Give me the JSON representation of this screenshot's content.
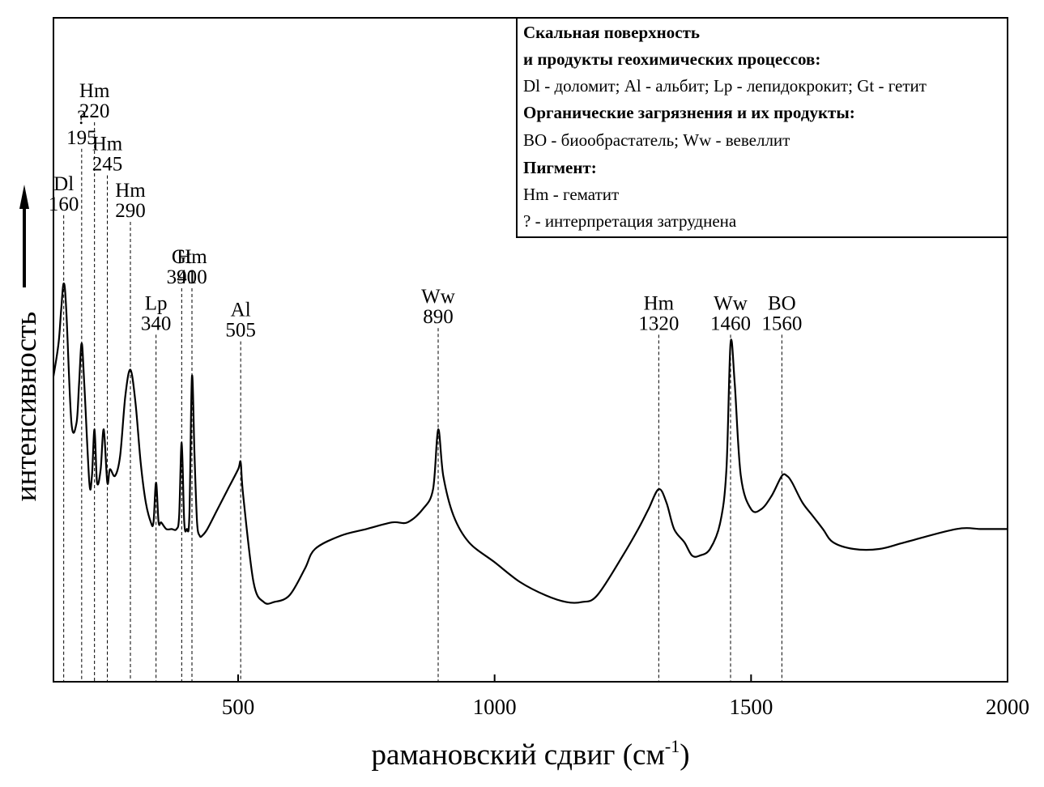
{
  "chart_data": {
    "type": "line",
    "xlabel": "рамановский сдвиг (см",
    "xlabel_sup": "-1",
    "xlabel_close": ")",
    "ylabel": "интенсивность",
    "xlim": [
      140,
      2000
    ],
    "ylim": [
      0,
      1
    ],
    "xticks": [
      500,
      1000,
      1500,
      2000
    ],
    "grid": false,
    "legend_position": "top-right",
    "legend": [
      {
        "text": "Скальная поверхность",
        "bold": true
      },
      {
        "text": "и продукты геохимических процессов:",
        "bold": true
      },
      {
        "text": "Dl - доломит; Al - альбит; Lp - лепидокрокит; Gt - гетит",
        "bold": false
      },
      {
        "text": "Органические загрязнения и их продукты:",
        "bold": true
      },
      {
        "text": "BO - биообрастатель; Ww - вевеллит",
        "bold": false
      },
      {
        "text": "Пигмент:",
        "bold": true
      },
      {
        "text": "Hm - гематит",
        "bold": false
      },
      {
        "text": "? - интерпретация затруднена",
        "bold": false
      }
    ],
    "peaks": [
      {
        "name": "Dl",
        "value": "160",
        "x": 160,
        "label_top": 0.71
      },
      {
        "name": "?",
        "value": "195",
        "x": 195,
        "label_top": 0.81
      },
      {
        "name": "Hm",
        "value": "220",
        "x": 220,
        "label_top": 0.85
      },
      {
        "name": "Hm",
        "value": "245",
        "x": 245,
        "label_top": 0.77
      },
      {
        "name": "Hm",
        "value": "290",
        "x": 290,
        "label_top": 0.7
      },
      {
        "name": "Lp",
        "value": "340",
        "x": 340,
        "label_top": 0.53
      },
      {
        "name": "Gt",
        "value": "390",
        "x": 390,
        "label_top": 0.6
      },
      {
        "name": "Hm",
        "value": "410",
        "x": 410,
        "label_top": 0.6
      },
      {
        "name": "Al",
        "value": "505",
        "x": 505,
        "label_top": 0.52
      },
      {
        "name": "Ww",
        "value": "890",
        "x": 890,
        "label_top": 0.54
      },
      {
        "name": "Hm",
        "value": "1320",
        "x": 1320,
        "label_top": 0.53
      },
      {
        "name": "Ww",
        "value": "1460",
        "x": 1460,
        "label_top": 0.53
      },
      {
        "name": "BO",
        "value": "1560",
        "x": 1560,
        "label_top": 0.53
      }
    ],
    "peak_line_bottom": 0.0,
    "series": [
      {
        "x": [
          140,
          150,
          155,
          160,
          165,
          175,
          185,
          190,
          195,
          200,
          210,
          215,
          220,
          225,
          232,
          238,
          245,
          250,
          260,
          270,
          280,
          290,
          300,
          310,
          320,
          330,
          335,
          340,
          345,
          350,
          360,
          370,
          380,
          385,
          390,
          395,
          400,
          405,
          410,
          415,
          420,
          425,
          430,
          440,
          460,
          480,
          500,
          505,
          510,
          530,
          550,
          570,
          600,
          630,
          650,
          700,
          750,
          800,
          830,
          860,
          880,
          890,
          900,
          920,
          950,
          1000,
          1050,
          1100,
          1140,
          1170,
          1200,
          1250,
          1280,
          1300,
          1320,
          1335,
          1350,
          1370,
          1385,
          1400,
          1420,
          1440,
          1452,
          1460,
          1468,
          1480,
          1500,
          1520,
          1540,
          1560,
          1570,
          1580,
          1600,
          1620,
          1640,
          1660,
          1700,
          1750,
          1800,
          1900,
          1950,
          2000
        ],
        "y": [
          0.46,
          0.51,
          0.56,
          0.6,
          0.56,
          0.39,
          0.39,
          0.45,
          0.51,
          0.45,
          0.3,
          0.31,
          0.38,
          0.3,
          0.32,
          0.38,
          0.3,
          0.32,
          0.31,
          0.34,
          0.43,
          0.47,
          0.42,
          0.33,
          0.27,
          0.24,
          0.24,
          0.3,
          0.24,
          0.24,
          0.23,
          0.23,
          0.23,
          0.25,
          0.36,
          0.24,
          0.23,
          0.25,
          0.46,
          0.34,
          0.24,
          0.22,
          0.22,
          0.23,
          0.26,
          0.29,
          0.32,
          0.33,
          0.28,
          0.15,
          0.12,
          0.12,
          0.13,
          0.17,
          0.2,
          0.22,
          0.23,
          0.24,
          0.24,
          0.26,
          0.29,
          0.38,
          0.31,
          0.25,
          0.21,
          0.18,
          0.15,
          0.13,
          0.12,
          0.12,
          0.13,
          0.19,
          0.23,
          0.26,
          0.29,
          0.27,
          0.23,
          0.21,
          0.19,
          0.19,
          0.2,
          0.24,
          0.32,
          0.51,
          0.45,
          0.31,
          0.26,
          0.26,
          0.28,
          0.31,
          0.31,
          0.3,
          0.27,
          0.25,
          0.23,
          0.21,
          0.2,
          0.2,
          0.21,
          0.23,
          0.23,
          0.23
        ]
      }
    ]
  }
}
